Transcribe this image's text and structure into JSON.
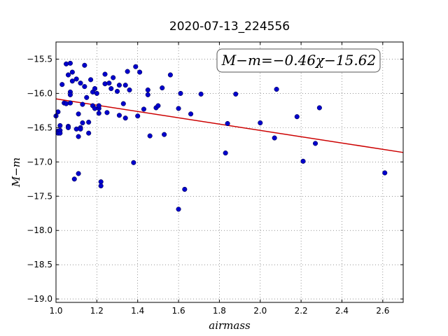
{
  "chart_data": {
    "type": "scatter",
    "title": "2020-07-13_224556",
    "xlabel": "airmass",
    "ylabel": "M−m",
    "xlim": [
      1.0,
      2.7
    ],
    "ylim": [
      -19.05,
      -15.25
    ],
    "y_inverted": false,
    "grid": true,
    "xticks": [
      "1.0",
      "1.2",
      "1.4",
      "1.6",
      "1.8",
      "2.0",
      "2.2",
      "2.4",
      "2.6"
    ],
    "yticks": [
      "−15.5",
      "−16.0",
      "−16.5",
      "−17.0",
      "−17.5",
      "−18.0",
      "−18.5",
      "−19.0"
    ],
    "annotation": "M−m=−0.46χ−15.62",
    "colors": {
      "points": "#0000cc",
      "fit": "#cc0000"
    },
    "fit": {
      "slope": -0.46,
      "intercept": -15.62,
      "x_range": [
        1.0,
        2.7
      ]
    },
    "x": [
      1.0,
      1.01,
      1.01,
      1.01,
      1.02,
      1.02,
      1.02,
      1.03,
      1.04,
      1.05,
      1.05,
      1.06,
      1.06,
      1.06,
      1.07,
      1.07,
      1.07,
      1.07,
      1.08,
      1.08,
      1.09,
      1.1,
      1.1,
      1.11,
      1.11,
      1.11,
      1.12,
      1.12,
      1.12,
      1.13,
      1.13,
      1.14,
      1.14,
      1.15,
      1.16,
      1.16,
      1.17,
      1.18,
      1.18,
      1.19,
      1.19,
      1.2,
      1.21,
      1.21,
      1.21,
      1.22,
      1.22,
      1.24,
      1.24,
      1.25,
      1.26,
      1.27,
      1.28,
      1.3,
      1.31,
      1.31,
      1.33,
      1.34,
      1.34,
      1.35,
      1.36,
      1.38,
      1.39,
      1.4,
      1.41,
      1.43,
      1.45,
      1.45,
      1.46,
      1.49,
      1.5,
      1.52,
      1.53,
      1.56,
      1.6,
      1.6,
      1.61,
      1.63,
      1.66,
      1.71,
      1.83,
      1.84,
      1.88,
      2.0,
      2.07,
      2.08,
      2.18,
      2.21,
      2.27,
      2.29,
      2.61
    ],
    "y": [
      -16.33,
      -16.27,
      -16.55,
      -16.58,
      -16.47,
      -16.54,
      -16.58,
      -15.87,
      -16.14,
      -15.57,
      -16.15,
      -15.73,
      -16.48,
      -16.5,
      -15.56,
      -15.98,
      -16.02,
      -16.14,
      -15.69,
      -15.82,
      -17.25,
      -15.79,
      -16.52,
      -17.17,
      -16.3,
      -16.63,
      -15.85,
      -16.5,
      -16.52,
      -16.43,
      -16.16,
      -15.59,
      -15.9,
      -16.06,
      -16.58,
      -16.42,
      -15.8,
      -15.98,
      -16.18,
      -15.93,
      -16.22,
      -16.0,
      -16.22,
      -16.29,
      -16.18,
      -17.29,
      -17.35,
      -15.86,
      -15.72,
      -16.28,
      -15.85,
      -15.93,
      -15.77,
      -15.97,
      -16.32,
      -15.88,
      -16.15,
      -15.88,
      -16.36,
      -15.68,
      -15.95,
      -17.01,
      -15.61,
      -16.33,
      -15.69,
      -16.23,
      -16.02,
      -15.95,
      -16.62,
      -16.21,
      -16.18,
      -15.92,
      -16.6,
      -15.73,
      -16.22,
      -17.69,
      -16.0,
      -17.4,
      -16.3,
      -16.01,
      -16.87,
      -16.44,
      -16.01,
      -16.43,
      -16.65,
      -15.94,
      -16.34,
      -16.99,
      -16.73,
      -16.21,
      -17.16
    ]
  }
}
